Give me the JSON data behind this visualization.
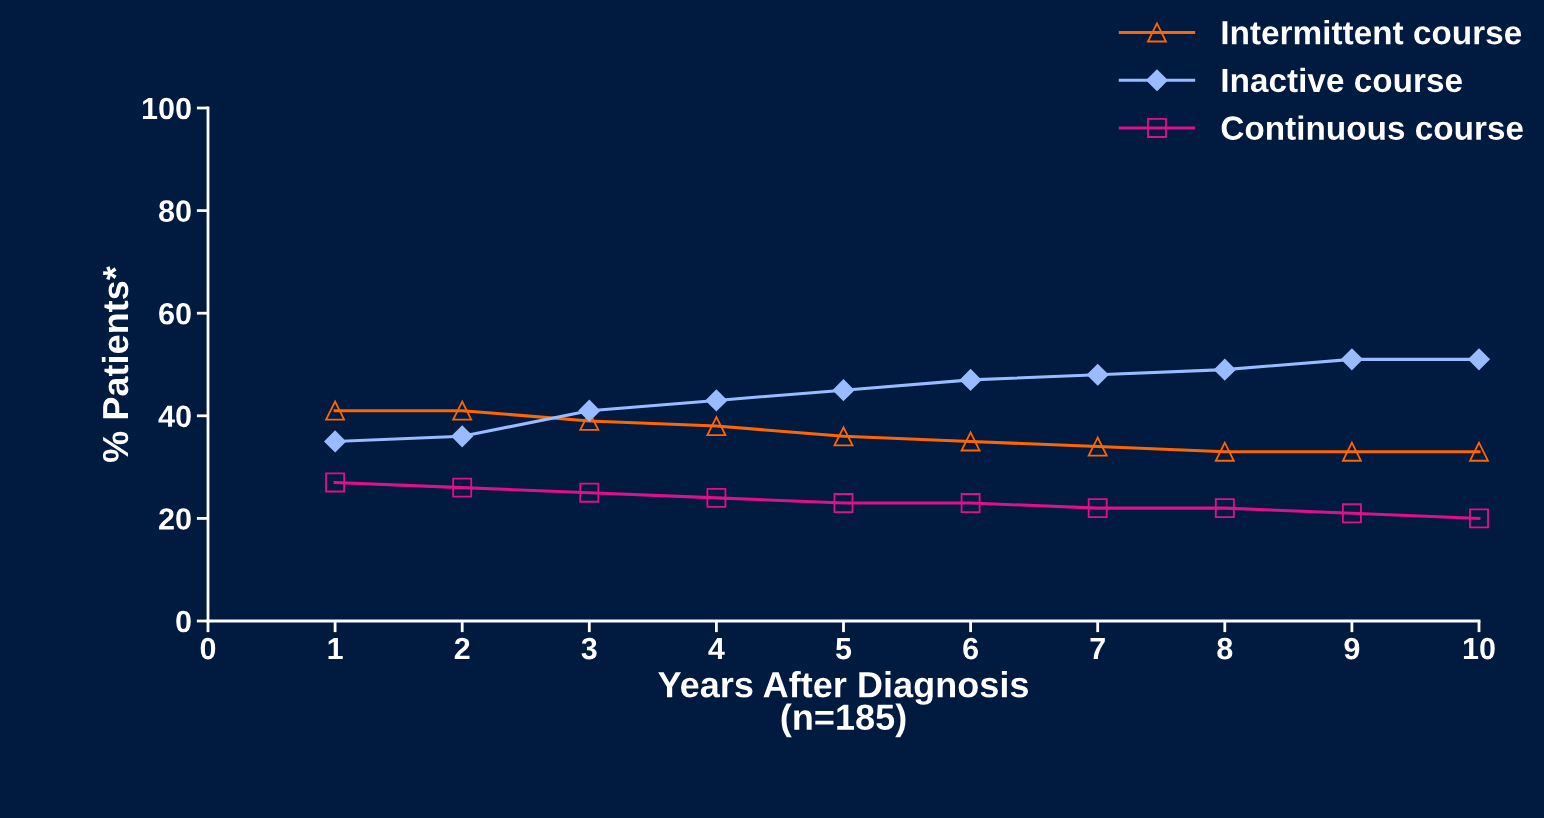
{
  "chart_data": {
    "type": "line",
    "xlabel": "Years After Diagnosis\n(n=185)",
    "ylabel": "% Patients*",
    "x": [
      1,
      2,
      3,
      4,
      5,
      6,
      7,
      8,
      9,
      10
    ],
    "xlim": [
      0,
      10
    ],
    "xticks": [
      0,
      1,
      2,
      3,
      4,
      5,
      6,
      7,
      8,
      9,
      10
    ],
    "ylim": [
      0,
      100
    ],
    "yticks": [
      0,
      20,
      40,
      60,
      80,
      100
    ],
    "grid": false,
    "legend": "top right",
    "line_style": "solid",
    "series": [
      {
        "name": "Intermittent course",
        "color": "#ff6600",
        "marker": "triangle",
        "values": [
          41,
          41,
          39,
          38,
          36,
          35,
          34,
          33,
          33,
          33
        ]
      },
      {
        "name": "Inactive course",
        "color": "#99bbff",
        "marker": "diamond",
        "values": [
          35,
          36,
          41,
          43,
          45,
          47,
          48,
          49,
          51,
          51
        ]
      },
      {
        "name": "Continuous course",
        "color": "#e0108c",
        "marker": "square",
        "values": [
          27,
          26,
          25,
          24,
          23,
          23,
          22,
          22,
          21,
          20
        ]
      }
    ]
  }
}
